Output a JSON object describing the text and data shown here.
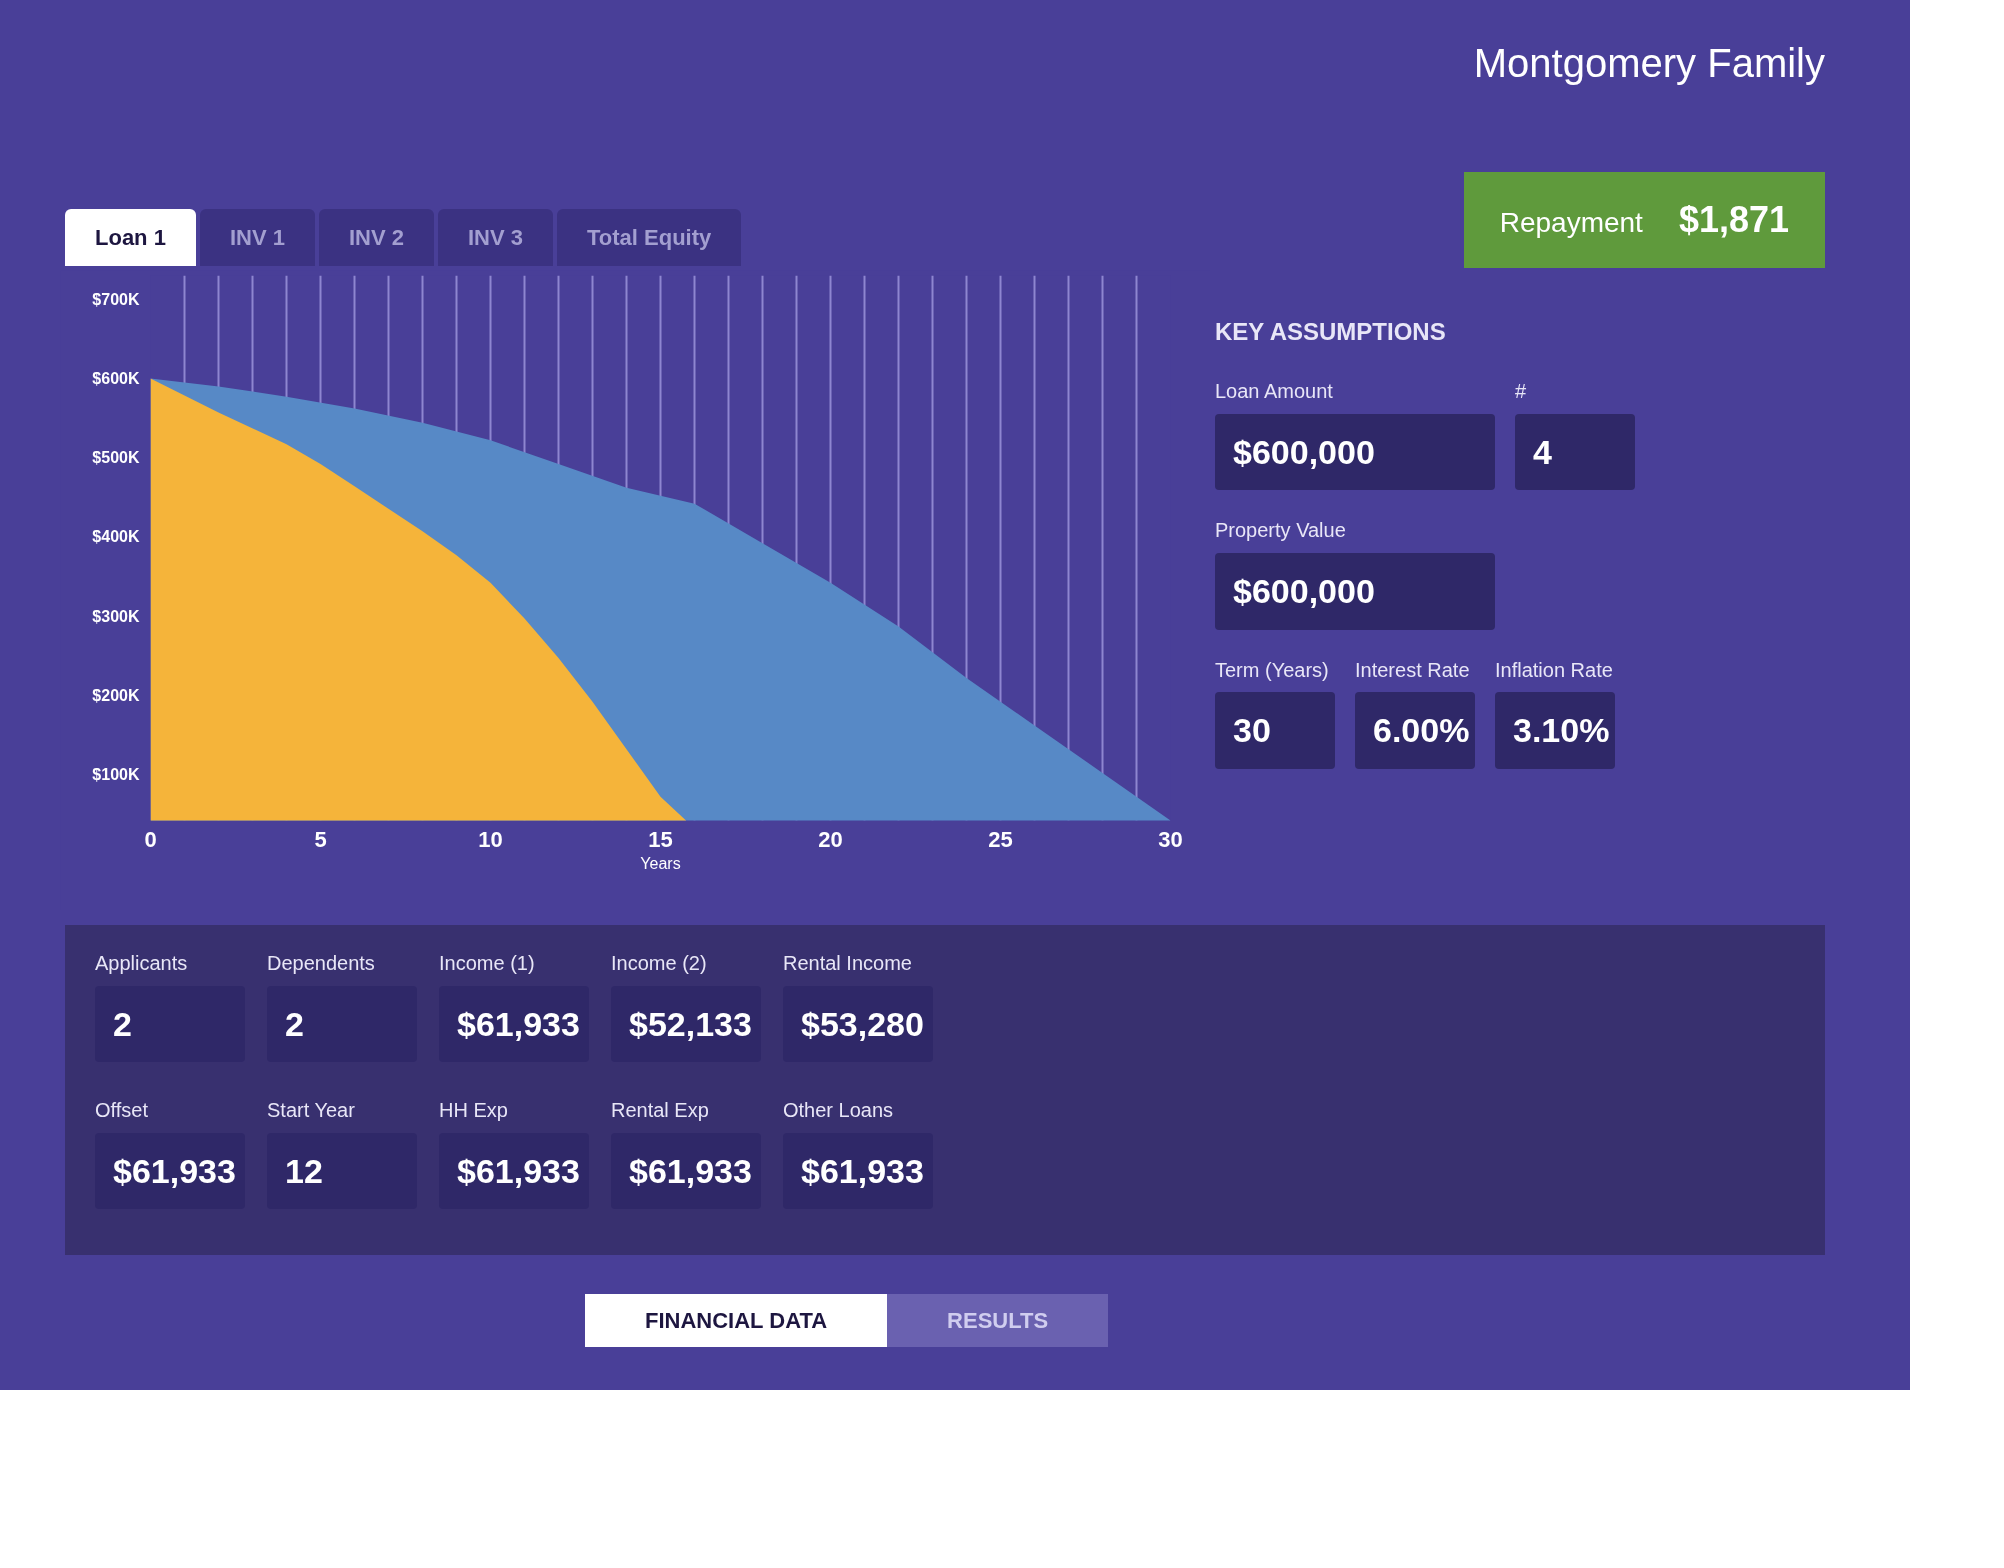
{
  "chart_data": [
    {
      "type": "area",
      "xlabel": "Years",
      "grid": "x",
      "xlim": [
        0,
        30
      ],
      "ylim": [
        42000,
        730000
      ],
      "xticks": [
        0,
        {
          "value": 1,
          "label": null
        },
        {
          "value": 2,
          "label": null
        },
        {
          "value": 3,
          "label": null
        },
        {
          "value": 4,
          "label": null
        },
        5,
        {
          "value": 6,
          "label": null
        },
        {
          "value": 7,
          "label": null
        },
        {
          "value": 8,
          "label": null
        },
        {
          "value": 9,
          "label": null
        },
        10,
        {
          "value": 11,
          "label": null
        },
        {
          "value": 12,
          "label": null
        },
        {
          "value": 13,
          "label": null
        },
        {
          "value": 14,
          "label": null
        },
        15,
        {
          "value": 16,
          "label": null
        },
        {
          "value": 17,
          "label": null
        },
        {
          "value": 18,
          "label": null
        },
        {
          "value": 19,
          "label": null
        },
        20,
        {
          "value": 21,
          "label": null
        },
        {
          "value": 22,
          "label": null
        },
        {
          "value": 23,
          "label": null
        },
        {
          "value": 24,
          "label": null
        },
        25,
        {
          "value": 26,
          "label": null
        },
        {
          "value": 27,
          "label": null
        },
        {
          "value": 28,
          "label": null
        },
        {
          "value": 29,
          "label": null
        },
        30
      ],
      "yticks": [
        {
          "value": 100000,
          "label": "$100K"
        },
        {
          "value": 200000,
          "label": "$200K"
        },
        {
          "value": 300000,
          "label": "$300K"
        },
        {
          "value": 400000,
          "label": "$400K"
        },
        {
          "value": 500000,
          "label": "$500K"
        },
        {
          "value": 600000,
          "label": "$600K"
        },
        {
          "value": 700000,
          "label": "$700K"
        }
      ],
      "series": [
        {
          "color": "#5789c6",
          "x": [
            0,
            2,
            4,
            6,
            8,
            10,
            12,
            14,
            16,
            18,
            20,
            22,
            24,
            26,
            28,
            30
          ],
          "values": [
            600000,
            590000,
            577000,
            562000,
            544000,
            522000,
            492000,
            462000,
            442000,
            392000,
            342000,
            287000,
            222000,
            162000,
            102000,
            42000
          ]
        },
        {
          "color": "#f5b43a",
          "x": [
            0,
            2,
            4,
            5,
            6,
            8,
            9,
            10,
            11,
            12,
            13,
            14,
            15,
            15.75
          ],
          "values": [
            600000,
            557000,
            517000,
            492000,
            464000,
            407000,
            377000,
            342000,
            297000,
            247000,
            192000,
            132000,
            72000,
            42000
          ]
        }
      ]
    },
    {
      "type": "other",
      "title": "Montgomery Family",
      "annotations": [
        "Loan 1",
        "INV 1",
        "INV 2",
        "INV 3",
        "Total Equity",
        "FINANCIAL DATA",
        "RESULTS"
      ]
    },
    {
      "type": "other",
      "title": "KEY ASSUMPTIONS",
      "annotations": [
        "Repayment",
        "$1,871",
        "Loan Amount",
        "$600,000",
        "#",
        "4",
        "Property Value",
        "$600,000",
        "Term (Years)",
        "30",
        "Interest Rate",
        "6.00%",
        "Inflation Rate",
        "3.10%"
      ]
    },
    {
      "type": "other",
      "annotations": [
        "Applicants",
        "2",
        "Dependents",
        "2",
        "Income (1)",
        "$61,933",
        "Income (2)",
        "$52,133",
        "Rental Income",
        "$53,280",
        "Offset",
        "$61,933",
        "Start Year",
        "12",
        "HH Exp",
        "$61,933",
        "Rental Exp",
        "$61,933",
        "Other Loans",
        "$61,933"
      ]
    }
  ]
}
